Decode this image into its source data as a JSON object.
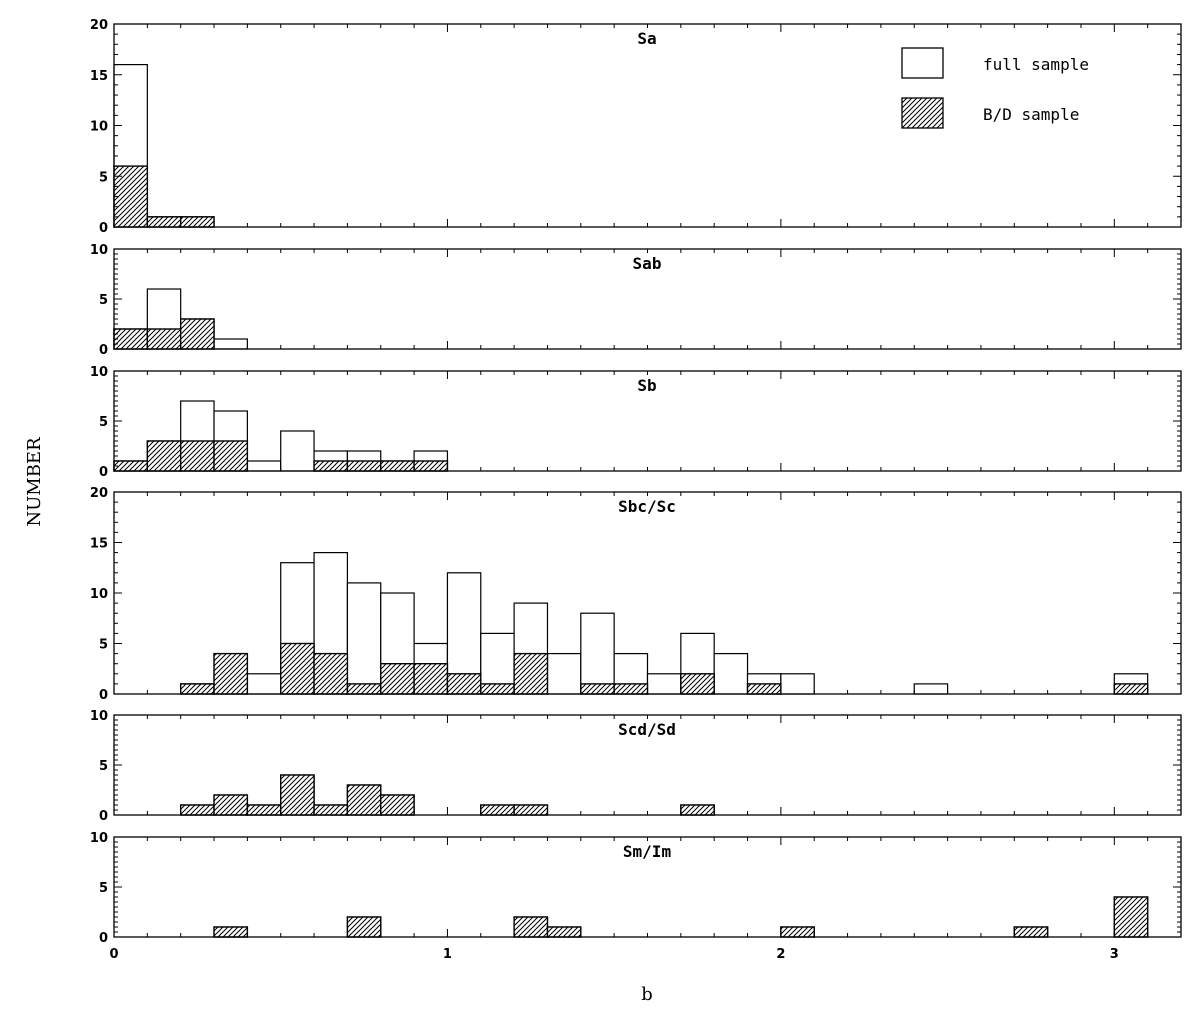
{
  "chart_data": {
    "type": "bar",
    "xlabel": "b",
    "ylabel": "NUMBER",
    "xlim": [
      0,
      3.2
    ],
    "bin_width": 0.1,
    "x_ticks": [
      0,
      1,
      2,
      3
    ],
    "legend": {
      "placement": "top-right",
      "entries": [
        {
          "label": "full sample",
          "style": "open"
        },
        {
          "label": "B/D sample",
          "style": "hatched"
        }
      ]
    },
    "panels": [
      {
        "label": "Sa",
        "ylim": [
          0,
          20
        ],
        "y_ticks": [
          0,
          5,
          10,
          15,
          20
        ],
        "bin_starts": [
          0,
          0.1,
          0.2
        ],
        "full_sample": [
          16,
          1,
          1
        ],
        "bd_sample": [
          6,
          1,
          1
        ]
      },
      {
        "label": "Sab",
        "ylim": [
          0,
          10
        ],
        "y_ticks": [
          0,
          5,
          10
        ],
        "bin_starts": [
          0,
          0.1,
          0.2,
          0.3
        ],
        "full_sample": [
          2,
          6,
          3,
          1
        ],
        "bd_sample": [
          2,
          2,
          3,
          0
        ]
      },
      {
        "label": "Sb",
        "ylim": [
          0,
          10
        ],
        "y_ticks": [
          0,
          5,
          10
        ],
        "bin_starts": [
          0,
          0.1,
          0.2,
          0.3,
          0.4,
          0.5,
          0.6,
          0.7,
          0.8,
          0.9
        ],
        "full_sample": [
          1,
          3,
          7,
          6,
          1,
          4,
          2,
          2,
          1,
          2
        ],
        "bd_sample": [
          1,
          3,
          3,
          3,
          0,
          0,
          1,
          1,
          1,
          1
        ]
      },
      {
        "label": "Sbc/Sc",
        "ylim": [
          0,
          20
        ],
        "y_ticks": [
          0,
          5,
          10,
          15,
          20
        ],
        "bin_starts": [
          0.2,
          0.3,
          0.4,
          0.5,
          0.6,
          0.7,
          0.8,
          0.9,
          1.0,
          1.1,
          1.2,
          1.3,
          1.4,
          1.5,
          1.6,
          1.7,
          1.8,
          1.9,
          2.0,
          2.4,
          3.0
        ],
        "full_sample": [
          1,
          4,
          2,
          13,
          14,
          11,
          10,
          5,
          12,
          6,
          9,
          4,
          8,
          4,
          2,
          6,
          4,
          2,
          2,
          1,
          2
        ],
        "bd_sample": [
          1,
          4,
          0,
          5,
          4,
          1,
          3,
          3,
          2,
          1,
          4,
          0,
          1,
          1,
          0,
          2,
          0,
          1,
          0,
          0,
          1
        ]
      },
      {
        "label": "Scd/Sd",
        "ylim": [
          0,
          10
        ],
        "y_ticks": [
          0,
          5,
          10
        ],
        "bin_starts": [
          0.2,
          0.3,
          0.4,
          0.5,
          0.6,
          0.7,
          0.8,
          1.1,
          1.2,
          1.7
        ],
        "full_sample": [
          1,
          2,
          1,
          4,
          1,
          3,
          2,
          1,
          1,
          1
        ],
        "bd_sample": [
          1,
          2,
          1,
          4,
          1,
          3,
          2,
          1,
          1,
          1
        ]
      },
      {
        "label": "Sm/Im",
        "ylim": [
          0,
          10
        ],
        "y_ticks": [
          0,
          5,
          10
        ],
        "bin_starts": [
          0.3,
          0.7,
          1.2,
          1.3,
          2.0,
          2.7,
          3.0
        ],
        "full_sample": [
          1,
          2,
          2,
          1,
          1,
          1,
          4
        ],
        "bd_sample": [
          1,
          2,
          2,
          1,
          1,
          1,
          4
        ]
      }
    ]
  }
}
